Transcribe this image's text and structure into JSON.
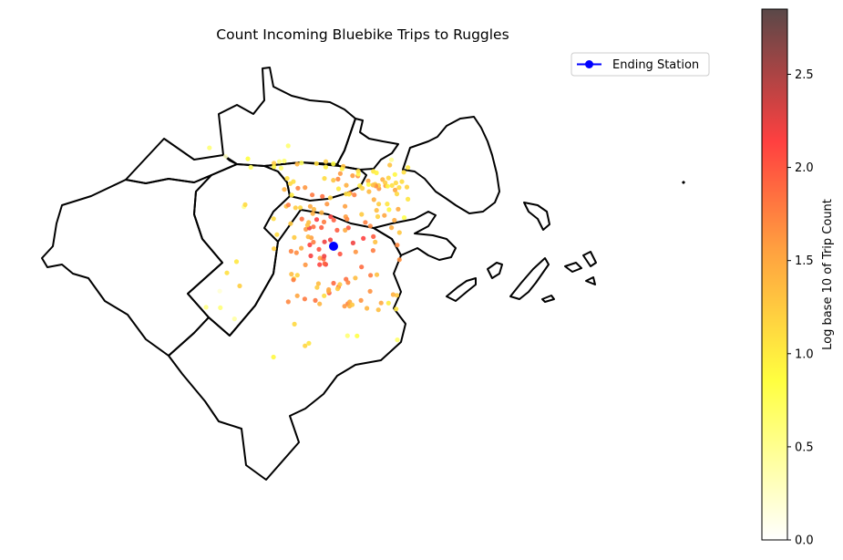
{
  "title": "Count Incoming Bluebike Trips to Ruggles",
  "legend": {
    "label": "Ending Station",
    "marker_color": "#0000ff"
  },
  "colorbar": {
    "label": "Log base 10 of Trip Count",
    "min": 0.0,
    "max": 2.85,
    "ticks": [
      "0.0",
      "0.5",
      "1.0",
      "1.5",
      "2.0",
      "2.5"
    ],
    "tick_values": [
      0.0,
      0.5,
      1.0,
      1.5,
      2.0,
      2.5
    ],
    "colormap": "hot_r",
    "colormap_stops": [
      "#ffffff",
      "#ffff40",
      "#ff9f40",
      "#ff4040",
      "#5a4848"
    ]
  },
  "map": {
    "boundary_color": "#000000",
    "ending_station_color": "#0000ff",
    "stations_mapped": 200
  },
  "chart_data": {
    "type": "scatter",
    "title": "Count Incoming Bluebike Trips to Ruggles",
    "color_label": "Log base 10 of Trip Count",
    "color_range": [
      0,
      2.85
    ],
    "legend_placement": "top-right",
    "grid": false,
    "series": [
      {
        "name": "Ending Station"
      }
    ]
  }
}
